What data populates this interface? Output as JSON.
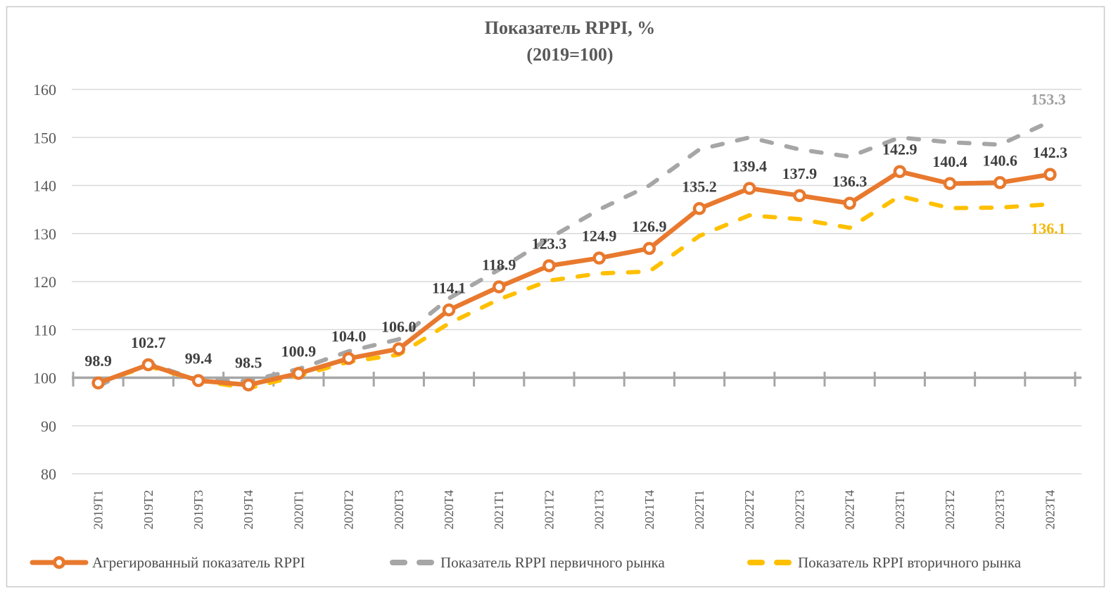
{
  "title": {
    "line1": "Показатель RPPI, %",
    "line2": "(2019=100)"
  },
  "colors": {
    "orange": "#E8792E",
    "gray": "#A6A6A6",
    "gold": "#FFC000",
    "grid": "#D9D9D9",
    "axis": "#A6A6A6",
    "data_label": "#3F3F3F",
    "end_label_gray": "#9E9E9E",
    "end_label_gold": "#F2B705",
    "tick_label": "#595959",
    "title_text": "#595959",
    "legend_text": "#4D4D4D",
    "frame_border": "#C9C9C9"
  },
  "chart_data": {
    "type": "line",
    "title": "Показатель RPPI, % (2019=100)",
    "categories": [
      "2019Т1",
      "2019Т2",
      "2019Т3",
      "2019Т4",
      "2020Т1",
      "2020Т2",
      "2020Т3",
      "2020Т4",
      "2021Т1",
      "2021Т2",
      "2021Т3",
      "2021Т4",
      "2022Т1",
      "2022Т2",
      "2022Т3",
      "2022Т4",
      "2023Т1",
      "2023Т2",
      "2023Т3",
      "2023Т4"
    ],
    "y_ticks": [
      80,
      90,
      100,
      110,
      120,
      130,
      140,
      150,
      160
    ],
    "ylim": [
      80,
      160
    ],
    "baseline": 100,
    "grid": "horizontal",
    "legend_position": "bottom",
    "series": [
      {
        "name": "Агрегированный показатель RPPI",
        "style": "solid-with-markers",
        "color_key": "orange",
        "values": [
          98.9,
          102.7,
          99.4,
          98.5,
          100.9,
          104.0,
          106.0,
          114.1,
          118.9,
          123.3,
          124.9,
          126.9,
          135.2,
          139.4,
          137.9,
          136.3,
          142.9,
          140.4,
          140.6,
          142.3
        ],
        "data_labels": [
          "98.9",
          "102.7",
          "99.4",
          "98.5",
          "100.9",
          "104.0",
          "106.0",
          "114.1",
          "118.9",
          "123.3",
          "124.9",
          "126.9",
          "135.2",
          "139.4",
          "137.9",
          "136.3",
          "142.9",
          "140.4",
          "140.6",
          "142.3"
        ]
      },
      {
        "name": "Показатель RPPI первичного рынка",
        "style": "dashed",
        "color_key": "gray",
        "values_estimated": true,
        "values": [
          98.3,
          103.0,
          99.5,
          99.3,
          101.8,
          105.5,
          108.0,
          116.5,
          122.5,
          129.0,
          135.0,
          140.0,
          147.5,
          150.0,
          147.5,
          146.0,
          150.0,
          149.0,
          148.5,
          153.3
        ],
        "end_label": "153.3"
      },
      {
        "name": "Показатель RPPI вторичного рынка",
        "style": "dashed",
        "color_key": "gold",
        "values_estimated": true,
        "values": [
          99.0,
          102.4,
          99.4,
          97.8,
          100.4,
          103.3,
          104.8,
          111.3,
          116.3,
          120.2,
          121.7,
          122.1,
          129.5,
          133.8,
          133.0,
          131.2,
          137.8,
          135.3,
          135.4,
          136.1
        ],
        "end_label": "136.1"
      }
    ]
  }
}
